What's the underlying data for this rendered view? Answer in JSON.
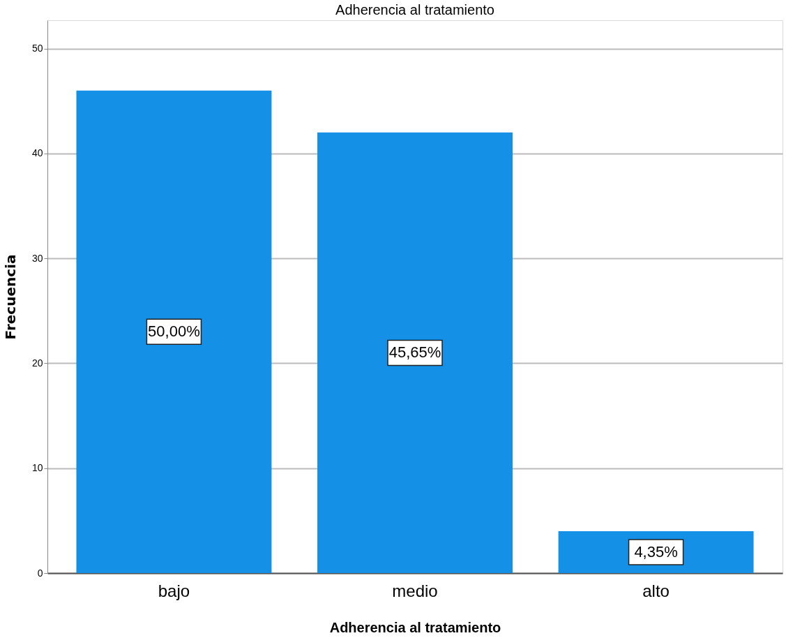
{
  "chart_data": {
    "type": "bar",
    "title": "Adherencia al tratamiento",
    "xlabel": "Adherencia al tratamiento",
    "ylabel": "Frecuencia",
    "categories": [
      "bajo",
      "medio",
      "alto"
    ],
    "values": [
      46,
      42,
      4
    ],
    "color": "#1490e6",
    "annotations": [
      "50,00%",
      "45,65%",
      "4,35%"
    ],
    "ylim": [
      0,
      52.7
    ],
    "yticks": [
      0,
      10,
      20,
      30,
      40,
      50
    ],
    "grid": "y"
  }
}
